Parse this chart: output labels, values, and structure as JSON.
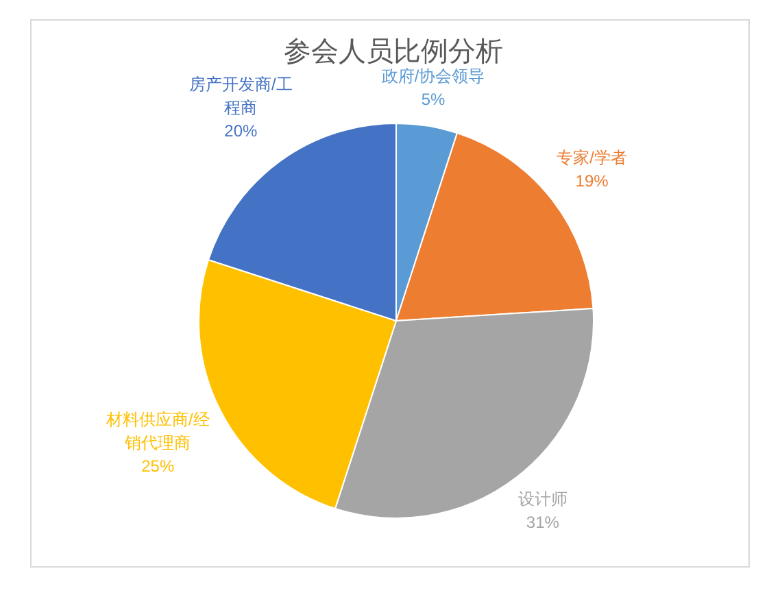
{
  "chart_data": {
    "type": "pie",
    "title": "参会人员比例分析",
    "categories": [
      "政府/协会领导",
      "专家/学者",
      "设计师",
      "材料供应商/经销代理商",
      "房产开发商/工程商"
    ],
    "values": [
      5,
      19,
      31,
      25,
      20
    ],
    "colors": [
      "#5b9bd5",
      "#ed7d31",
      "#a5a5a5",
      "#ffc000",
      "#4472c4"
    ],
    "value_labels": [
      "5%",
      "19%",
      "31%",
      "25%",
      "20%"
    ]
  }
}
